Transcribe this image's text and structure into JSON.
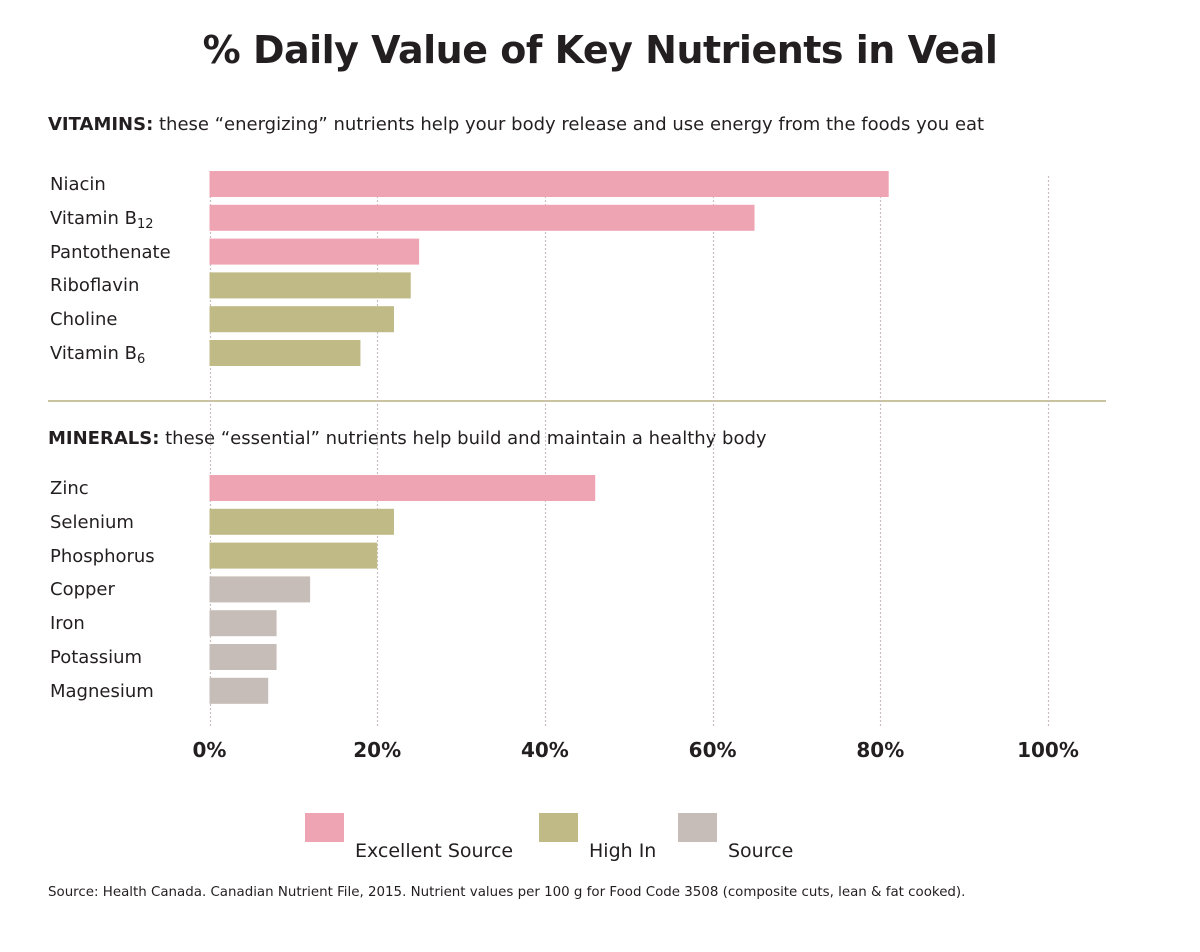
{
  "chart_data": {
    "type": "bar",
    "orientation": "horizontal",
    "title": "% Daily Value of Key Nutrients in Veal",
    "xlabel": "",
    "ylabel": "",
    "xlim": [
      0,
      100
    ],
    "x_ticks": [
      "0%",
      "20%",
      "40%",
      "60%",
      "80%",
      "100%"
    ],
    "x_tick_values": [
      0,
      20,
      40,
      60,
      80,
      100
    ],
    "grid": "vertical dotted",
    "legend_position": "bottom-center",
    "legend": [
      {
        "name": "Excellent Source",
        "color": "#eea4b3"
      },
      {
        "name": "High In",
        "color": "#bfba86"
      },
      {
        "name": "Source",
        "color": "#c6bcb8"
      }
    ],
    "groups": [
      {
        "heading_bold": "VITAMINS:",
        "heading_text": " these “energizing” nutrients help your body release and use energy from the foods you eat",
        "items": [
          {
            "name": "Niacin",
            "sub": "",
            "value": 81,
            "category": "Excellent Source"
          },
          {
            "name": "Vitamin B",
            "sub": "12",
            "value": 65,
            "category": "Excellent Source"
          },
          {
            "name": "Pantothenate",
            "sub": "",
            "value": 25,
            "category": "Excellent Source"
          },
          {
            "name": "Riboflavin",
            "sub": "",
            "value": 24,
            "category": "High In"
          },
          {
            "name": "Choline",
            "sub": "",
            "value": 22,
            "category": "High In"
          },
          {
            "name": "Vitamin B",
            "sub": "6",
            "value": 18,
            "category": "High In"
          }
        ]
      },
      {
        "heading_bold": "MINERALS:",
        "heading_text": " these “essential” nutrients help build and maintain a healthy body",
        "items": [
          {
            "name": "Zinc",
            "sub": "",
            "value": 46,
            "category": "Excellent Source"
          },
          {
            "name": "Selenium",
            "sub": "",
            "value": 22,
            "category": "High In"
          },
          {
            "name": "Phosphorus",
            "sub": "",
            "value": 20,
            "category": "High In"
          },
          {
            "name": "Copper",
            "sub": "",
            "value": 12,
            "category": "Source"
          },
          {
            "name": "Iron",
            "sub": "",
            "value": 8,
            "category": "Source"
          },
          {
            "name": "Potassium",
            "sub": "",
            "value": 8,
            "category": "Source"
          },
          {
            "name": "Magnesium",
            "sub": "",
            "value": 7,
            "category": "Source"
          }
        ]
      }
    ]
  },
  "source_note": "Source: Health Canada. Canadian Nutrient File, 2015. Nutrient values per 100 g for Food Code 3508 (composite cuts, lean & fat cooked)."
}
